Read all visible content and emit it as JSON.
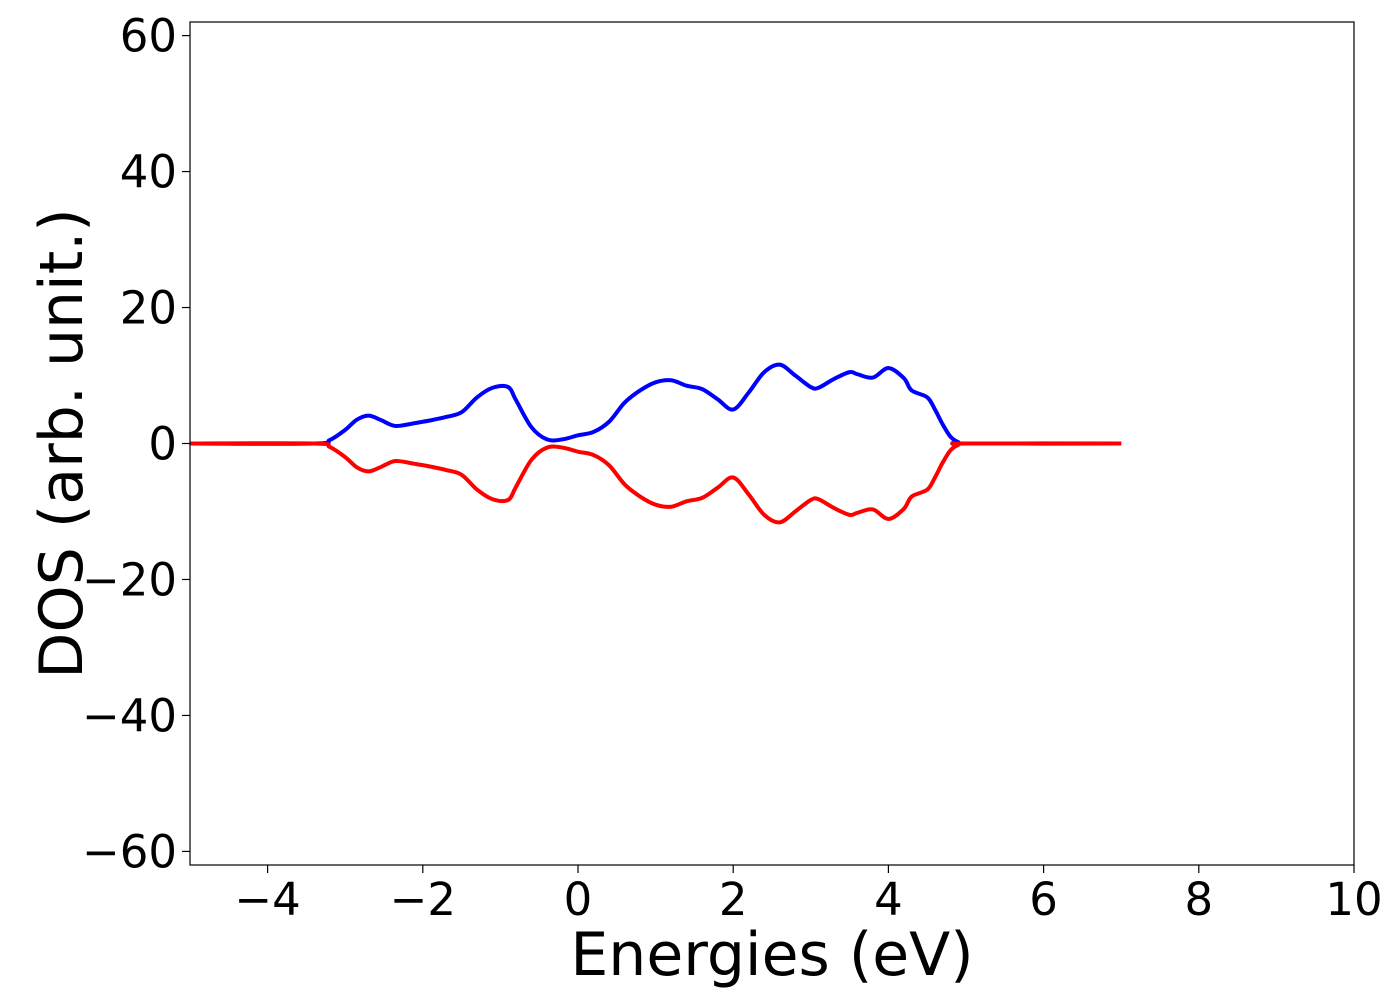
{
  "chart_data": {
    "type": "line",
    "title": "",
    "xlabel": "Energies (eV)",
    "ylabel": "DOS (arb. unit.)",
    "xlim": [
      -5,
      10
    ],
    "ylim": [
      -62,
      62
    ],
    "x_ticks": [
      -4,
      -2,
      0,
      2,
      4,
      6,
      8,
      10
    ],
    "y_ticks": [
      -60,
      -40,
      -20,
      0,
      20,
      40,
      60
    ],
    "x_tick_labels": [
      "−4",
      "−2",
      "0",
      "2",
      "4",
      "6",
      "8",
      "10"
    ],
    "y_tick_labels": [
      "−60",
      "−40",
      "−20",
      "0",
      "20",
      "40",
      "60"
    ],
    "grid": false,
    "legend": "none",
    "series": [
      {
        "color": "#0000ff",
        "x": [
          -5,
          -3.4,
          -3.2,
          -3.0,
          -2.85,
          -2.7,
          -2.55,
          -2.4,
          -2.3,
          -2.1,
          -1.9,
          -1.7,
          -1.5,
          -1.3,
          -1.1,
          -0.9,
          -0.8,
          -0.6,
          -0.4,
          -0.2,
          0.0,
          0.2,
          0.4,
          0.6,
          0.8,
          1.0,
          1.2,
          1.4,
          1.6,
          1.8,
          2.0,
          2.2,
          2.4,
          2.6,
          2.8,
          3.0,
          3.1,
          3.3,
          3.5,
          3.6,
          3.8,
          4.0,
          4.2,
          4.3,
          4.5,
          4.6,
          4.7,
          4.8,
          4.9,
          5.0,
          7.0
        ],
        "y": [
          0,
          0,
          0.5,
          2.0,
          3.5,
          4.1,
          3.5,
          2.7,
          2.6,
          3.0,
          3.4,
          3.9,
          4.6,
          6.8,
          8.2,
          8.3,
          6.4,
          2.4,
          0.6,
          0.6,
          1.2,
          1.7,
          3.2,
          6.0,
          7.8,
          9.0,
          9.3,
          8.5,
          8.0,
          6.5,
          5.0,
          7.5,
          10.5,
          11.6,
          10.0,
          8.3,
          8.2,
          9.5,
          10.5,
          10.2,
          9.7,
          11.1,
          9.6,
          7.8,
          6.8,
          5.0,
          2.8,
          1.0,
          0.2,
          0.0,
          0.0
        ]
      },
      {
        "color": "#ff0000",
        "x": [
          -5,
          -3.4,
          -3.2,
          -3.0,
          -2.85,
          -2.7,
          -2.55,
          -2.4,
          -2.3,
          -2.1,
          -1.9,
          -1.7,
          -1.5,
          -1.3,
          -1.1,
          -0.9,
          -0.8,
          -0.6,
          -0.4,
          -0.2,
          0.0,
          0.2,
          0.4,
          0.6,
          0.8,
          1.0,
          1.2,
          1.4,
          1.6,
          1.8,
          2.0,
          2.2,
          2.4,
          2.6,
          2.8,
          3.0,
          3.1,
          3.3,
          3.5,
          3.6,
          3.8,
          4.0,
          4.2,
          4.3,
          4.5,
          4.6,
          4.7,
          4.8,
          4.9,
          5.0,
          7.0
        ],
        "y": [
          0,
          0,
          -0.5,
          -2.0,
          -3.5,
          -4.1,
          -3.5,
          -2.7,
          -2.6,
          -3.0,
          -3.4,
          -3.9,
          -4.6,
          -6.8,
          -8.2,
          -8.3,
          -6.4,
          -2.4,
          -0.6,
          -0.6,
          -1.2,
          -1.7,
          -3.2,
          -6.0,
          -7.8,
          -9.0,
          -9.3,
          -8.5,
          -8.0,
          -6.5,
          -5.0,
          -7.5,
          -10.5,
          -11.6,
          -10.0,
          -8.3,
          -8.2,
          -9.5,
          -10.5,
          -10.2,
          -9.7,
          -11.1,
          -9.6,
          -7.8,
          -6.8,
          -5.0,
          -2.8,
          -1.0,
          -0.2,
          0.0,
          0.0
        ]
      }
    ]
  }
}
